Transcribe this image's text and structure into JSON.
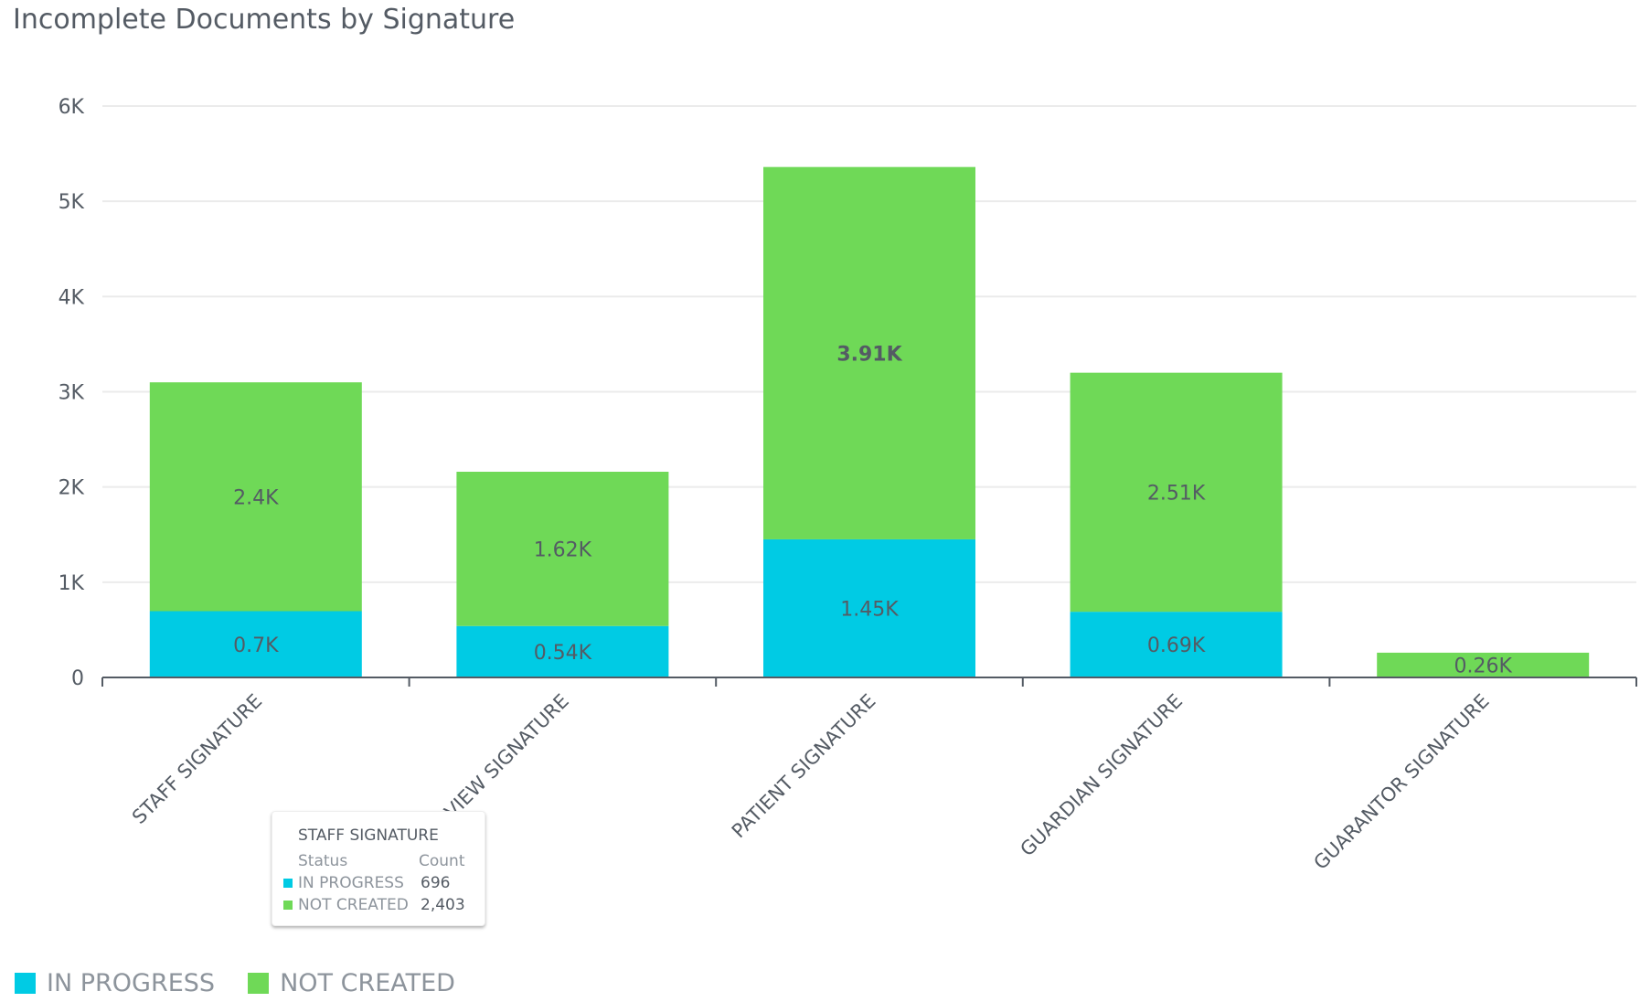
{
  "chart_data": {
    "type": "bar",
    "stacked": true,
    "title": "Incomplete Documents by Signature",
    "categories": [
      "STAFF SIGNATURE",
      "VIEW SIGNATURE",
      "PATIENT SIGNATURE",
      "GUARDIAN SIGNATURE",
      "GUARANTOR SIGNATURE"
    ],
    "series": [
      {
        "name": "IN PROGRESS",
        "color": "#00cbe4",
        "values": [
          696,
          540,
          1450,
          690,
          0
        ],
        "labels": [
          "0.7K",
          "0.54K",
          "1.45K",
          "0.69K",
          ""
        ]
      },
      {
        "name": "NOT CREATED",
        "color": "#6fd957",
        "values": [
          2403,
          1620,
          3910,
          2510,
          260
        ],
        "labels": [
          "2.4K",
          "1.62K",
          "3.91K",
          "2.51K",
          "0.26K"
        ]
      }
    ],
    "ylim": [
      0,
      6000
    ],
    "yticks": [
      0,
      1000,
      2000,
      3000,
      4000,
      5000,
      6000
    ],
    "ytick_labels": [
      "0",
      "1K",
      "2K",
      "3K",
      "4K",
      "5K",
      "6K"
    ],
    "grid": true,
    "legend_position": "bottom-left"
  },
  "tooltip": {
    "title": "STAFF SIGNATURE",
    "col_status": "Status",
    "col_count": "Count",
    "rows": [
      {
        "status": "IN PROGRESS",
        "count": "696"
      },
      {
        "status": "NOT CREATED",
        "count": "2,403"
      }
    ]
  }
}
